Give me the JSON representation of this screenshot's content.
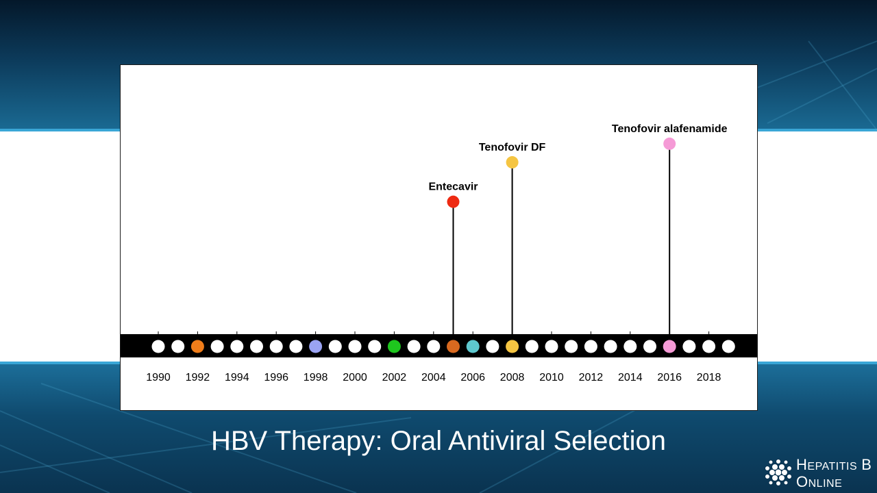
{
  "slide": {
    "title": "HBV Therapy: Oral Antiviral Selection",
    "logo": {
      "line1_initial": "H",
      "line1_rest": "EPATITIS",
      "line1_suffix": "B",
      "line2_initial": "O",
      "line2_rest": "NLINE",
      "icon": "hepatitis-b-virus-icon"
    }
  },
  "timeline": {
    "years": [
      1990,
      1991,
      1992,
      1993,
      1994,
      1995,
      1996,
      1997,
      1998,
      1999,
      2000,
      2001,
      2002,
      2003,
      2004,
      2005,
      2006,
      2007,
      2008,
      2009,
      2010,
      2011,
      2012,
      2013,
      2014,
      2015,
      2016,
      2017,
      2018,
      2019
    ],
    "year_labels": [
      "1990",
      "1992",
      "1994",
      "1996",
      "1998",
      "2000",
      "2002",
      "2004",
      "2006",
      "2008",
      "2010",
      "2012",
      "2014",
      "2016",
      "2018"
    ],
    "colored_dots": [
      {
        "year": 1992,
        "color": "#f07d1a"
      },
      {
        "year": 1998,
        "color": "#9aa3f2"
      },
      {
        "year": 2002,
        "color": "#1ec61e"
      },
      {
        "year": 2005,
        "color": "#d9691f"
      },
      {
        "year": 2006,
        "color": "#5ec8cf"
      },
      {
        "year": 2008,
        "color": "#f5c542"
      },
      {
        "year": 2016,
        "color": "#f59ad6"
      }
    ],
    "default_dot_color": "#ffffff",
    "bar_color": "#000000",
    "callouts": [
      {
        "label": "Entecavir",
        "year": 2005,
        "color": "#ee2a12",
        "level": 0.57
      },
      {
        "label": "Tenofovir DF",
        "year": 2008,
        "color": "#f5c542",
        "level": 0.74
      },
      {
        "label": "Tenofovir alafenamide",
        "year": 2016,
        "color": "#f59ad6",
        "level": 0.82
      }
    ]
  }
}
